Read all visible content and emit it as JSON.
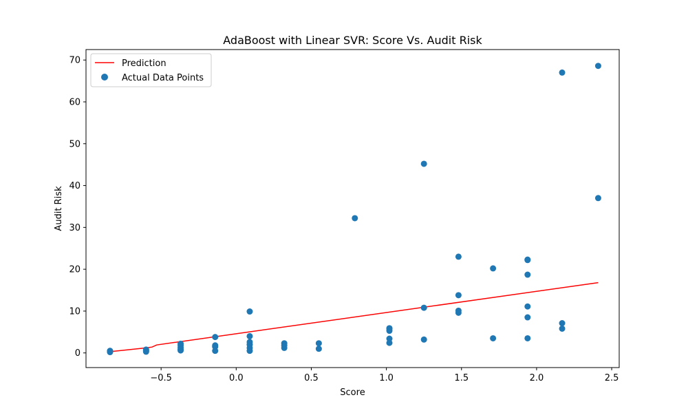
{
  "chart_data": {
    "type": "scatter",
    "title": "AdaBoost with Linear SVR: Score Vs. Audit Risk",
    "xlabel": "Score",
    "ylabel": "Audit Risk",
    "xlim": [
      -1.0,
      2.55
    ],
    "ylim": [
      -3.5,
      72.5
    ],
    "xticks": [
      -0.5,
      0.0,
      0.5,
      1.0,
      1.5,
      2.0,
      2.5
    ],
    "xtick_labels": [
      "−0.5",
      "0.0",
      "0.5",
      "1.0",
      "1.5",
      "2.0",
      "2.5"
    ],
    "yticks": [
      0,
      10,
      20,
      30,
      40,
      50,
      60,
      70
    ],
    "ytick_labels": [
      "0",
      "10",
      "20",
      "30",
      "40",
      "50",
      "60",
      "70"
    ],
    "grid": false,
    "legend_position": "top-left",
    "series": [
      {
        "name": "Prediction",
        "kind": "line",
        "color": "#ff0000",
        "x": [
          -0.84,
          -0.6,
          -0.56,
          -0.53,
          2.41
        ],
        "y": [
          0.3,
          1.2,
          1.4,
          1.9,
          16.8
        ]
      },
      {
        "name": "Actual Data Points",
        "kind": "scatter",
        "color": "#1f77b4",
        "x": [
          -0.84,
          -0.84,
          -0.84,
          -0.84,
          -0.6,
          -0.6,
          -0.6,
          -0.37,
          -0.37,
          -0.37,
          -0.37,
          -0.37,
          -0.14,
          -0.14,
          -0.14,
          -0.14,
          0.09,
          0.09,
          0.09,
          0.09,
          0.09,
          0.09,
          0.32,
          0.32,
          0.32,
          0.55,
          0.55,
          0.79,
          1.02,
          1.02,
          1.02,
          1.02,
          1.02,
          1.25,
          1.25,
          1.25,
          1.48,
          1.48,
          1.48,
          1.48,
          1.71,
          1.71,
          1.94,
          1.94,
          1.94,
          1.94,
          1.94,
          1.94,
          2.17,
          2.17,
          2.17,
          2.41,
          2.41
        ],
        "y": [
          0.2,
          0.3,
          0.4,
          0.5,
          0.3,
          0.5,
          0.8,
          0.6,
          0.9,
          1.3,
          1.8,
          2.2,
          0.5,
          1.5,
          1.8,
          3.8,
          0.5,
          1.2,
          2.0,
          2.6,
          4.0,
          9.9,
          1.2,
          1.8,
          2.3,
          1.0,
          2.3,
          32.2,
          2.4,
          3.4,
          5.3,
          5.8,
          5.9,
          3.2,
          10.8,
          45.2,
          9.6,
          10.1,
          13.8,
          23.0,
          3.5,
          20.2,
          3.5,
          8.5,
          11.1,
          18.7,
          22.2,
          22.3,
          5.8,
          7.1,
          67.0,
          37.0,
          68.6
        ]
      }
    ]
  }
}
